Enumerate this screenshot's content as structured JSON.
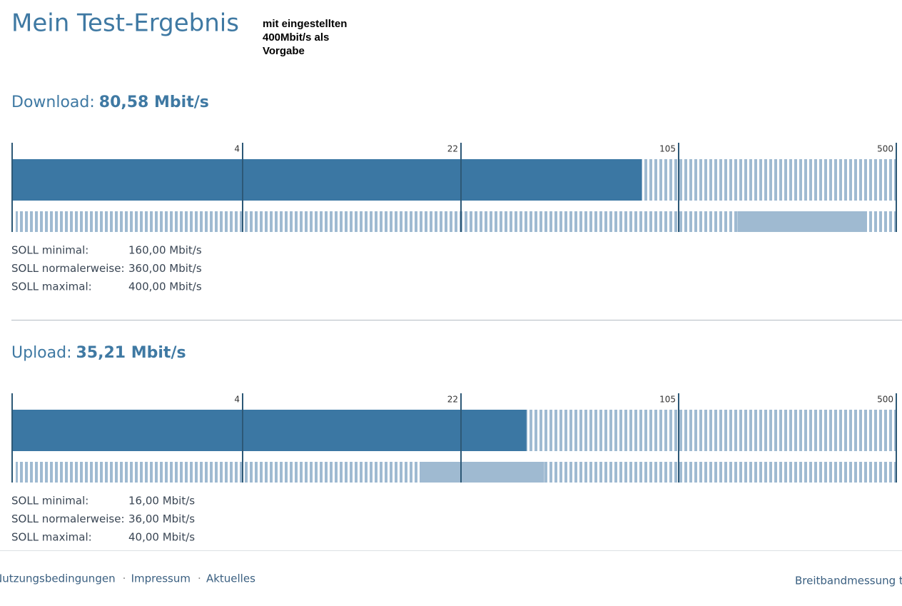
{
  "header": {
    "title": "Mein Test-Ergebnis",
    "note": [
      "mit eingestellten",
      "400Mbit/s als",
      "Vorgabe"
    ]
  },
  "sections": [
    {
      "heading": "Download:",
      "result": {
        "value": 80.58,
        "label": "80,58 Mbit/s"
      },
      "scale_ticks": [
        4,
        22,
        105,
        500
      ],
      "soll": [
        {
          "label": "SOLL minimal:",
          "value": 160,
          "text": "160,00 Mbit/s"
        },
        {
          "label": "SOLL normalerweise:",
          "value": 360,
          "text": "360,00 Mbit/s"
        },
        {
          "label": "SOLL maximal:",
          "value": 400,
          "text": "400,00 Mbit/s"
        }
      ]
    },
    {
      "heading": "Upload:",
      "result": {
        "value": 35.21,
        "label": "35,21 Mbit/s"
      },
      "scale_ticks": [
        4,
        22,
        105,
        500
      ],
      "soll": [
        {
          "label": "SOLL minimal:",
          "value": 16,
          "text": "16,00 Mbit/s"
        },
        {
          "label": "SOLL normalerweise:",
          "value": 36,
          "text": "36,00 Mbit/s"
        },
        {
          "label": "SOLL maximal:",
          "value": 40,
          "text": "40,00 Mbit/s"
        }
      ]
    }
  ],
  "footer": {
    "links": [
      "Nutzungsbedingungen",
      "Impressum",
      "Aktuelles"
    ],
    "separator": "·",
    "right": "Breitbandmessung te"
  }
}
